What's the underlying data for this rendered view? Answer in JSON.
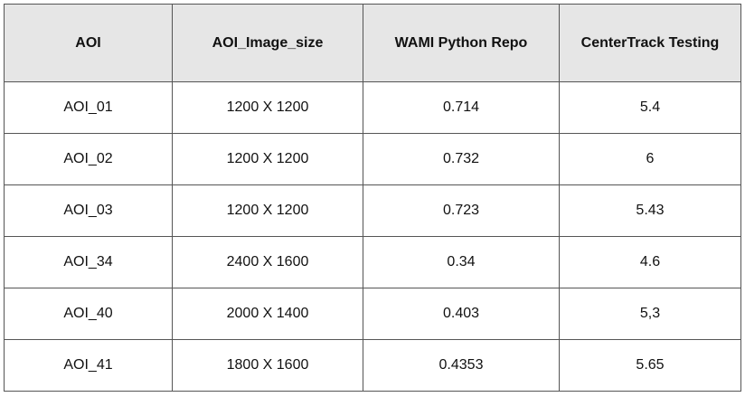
{
  "table": {
    "columns": [
      "AOI",
      "AOI_Image_size",
      "WAMI Python Repo",
      "CenterTrack Testing"
    ],
    "rows": [
      [
        "AOI_01",
        "1200 X 1200",
        "0.714",
        "5.4"
      ],
      [
        "AOI_02",
        "1200 X 1200",
        "0.732",
        "6"
      ],
      [
        "AOI_03",
        "1200 X 1200",
        "0.723",
        "5.43"
      ],
      [
        "AOI_34",
        "2400 X 1600",
        "0.34",
        "4.6"
      ],
      [
        "AOI_40",
        "2000 X 1400",
        "0.403",
        "5,3"
      ],
      [
        "AOI_41",
        "1800 X 1600",
        "0.4353",
        "5.65"
      ]
    ],
    "header_background": "#e6e6e6",
    "border_color": "#555555"
  }
}
